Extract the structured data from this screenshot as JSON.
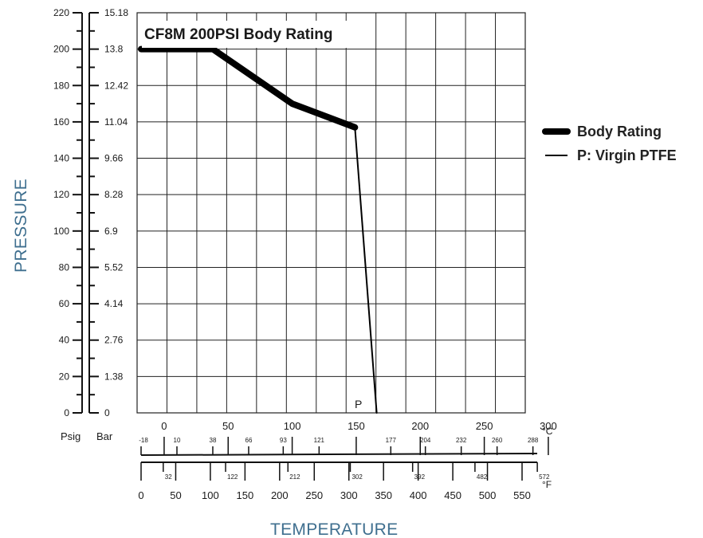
{
  "chart_data": {
    "type": "line",
    "title": "CF8M 200PSI Body Rating",
    "xlabel": "TEMPERATURE",
    "ylabel": "PRESSURE",
    "x_unit": "°C",
    "xlim": [
      -18,
      300
    ],
    "ylim": [
      0,
      220
    ],
    "grid": true,
    "legend_position": "right",
    "series": [
      {
        "name": "Body Rating",
        "style": "thick",
        "x": [
          -18,
          38,
          100,
          149
        ],
        "y": [
          200,
          200,
          170,
          157
        ]
      },
      {
        "name": "P: Virgin PTFE",
        "style": "thin",
        "x": [
          149,
          166
        ],
        "y": [
          157,
          0
        ]
      }
    ],
    "curve_label": "P",
    "psig_axis": {
      "label": "Psig",
      "ticks": [
        "0",
        "20",
        "40",
        "60",
        "80",
        "100",
        "120",
        "140",
        "160",
        "180",
        "200",
        "220"
      ]
    },
    "bar_axis": {
      "label": "Bar",
      "ticks": [
        "0",
        "1.38",
        "2.76",
        "4.14",
        "5.52",
        "6.9",
        "8.28",
        "9.66",
        "11.04",
        "12.42",
        "13.8",
        "15.18"
      ]
    },
    "celsius_axis": {
      "unit_label": "°C",
      "major_ticks": [
        "0",
        "50",
        "100",
        "150",
        "200",
        "250",
        "300"
      ],
      "minor_ticks": [
        "-18",
        "10",
        "38",
        "66",
        "93",
        "121",
        "177",
        "204",
        "232",
        "260",
        "288"
      ]
    },
    "fahrenheit_axis": {
      "unit_label": "°F",
      "major_ticks": [
        "0",
        "50",
        "100",
        "150",
        "200",
        "250",
        "300",
        "350",
        "400",
        "450",
        "500",
        "550"
      ],
      "minor_ticks": [
        "32",
        "122",
        "212",
        "302",
        "392",
        "482",
        "572"
      ]
    }
  }
}
